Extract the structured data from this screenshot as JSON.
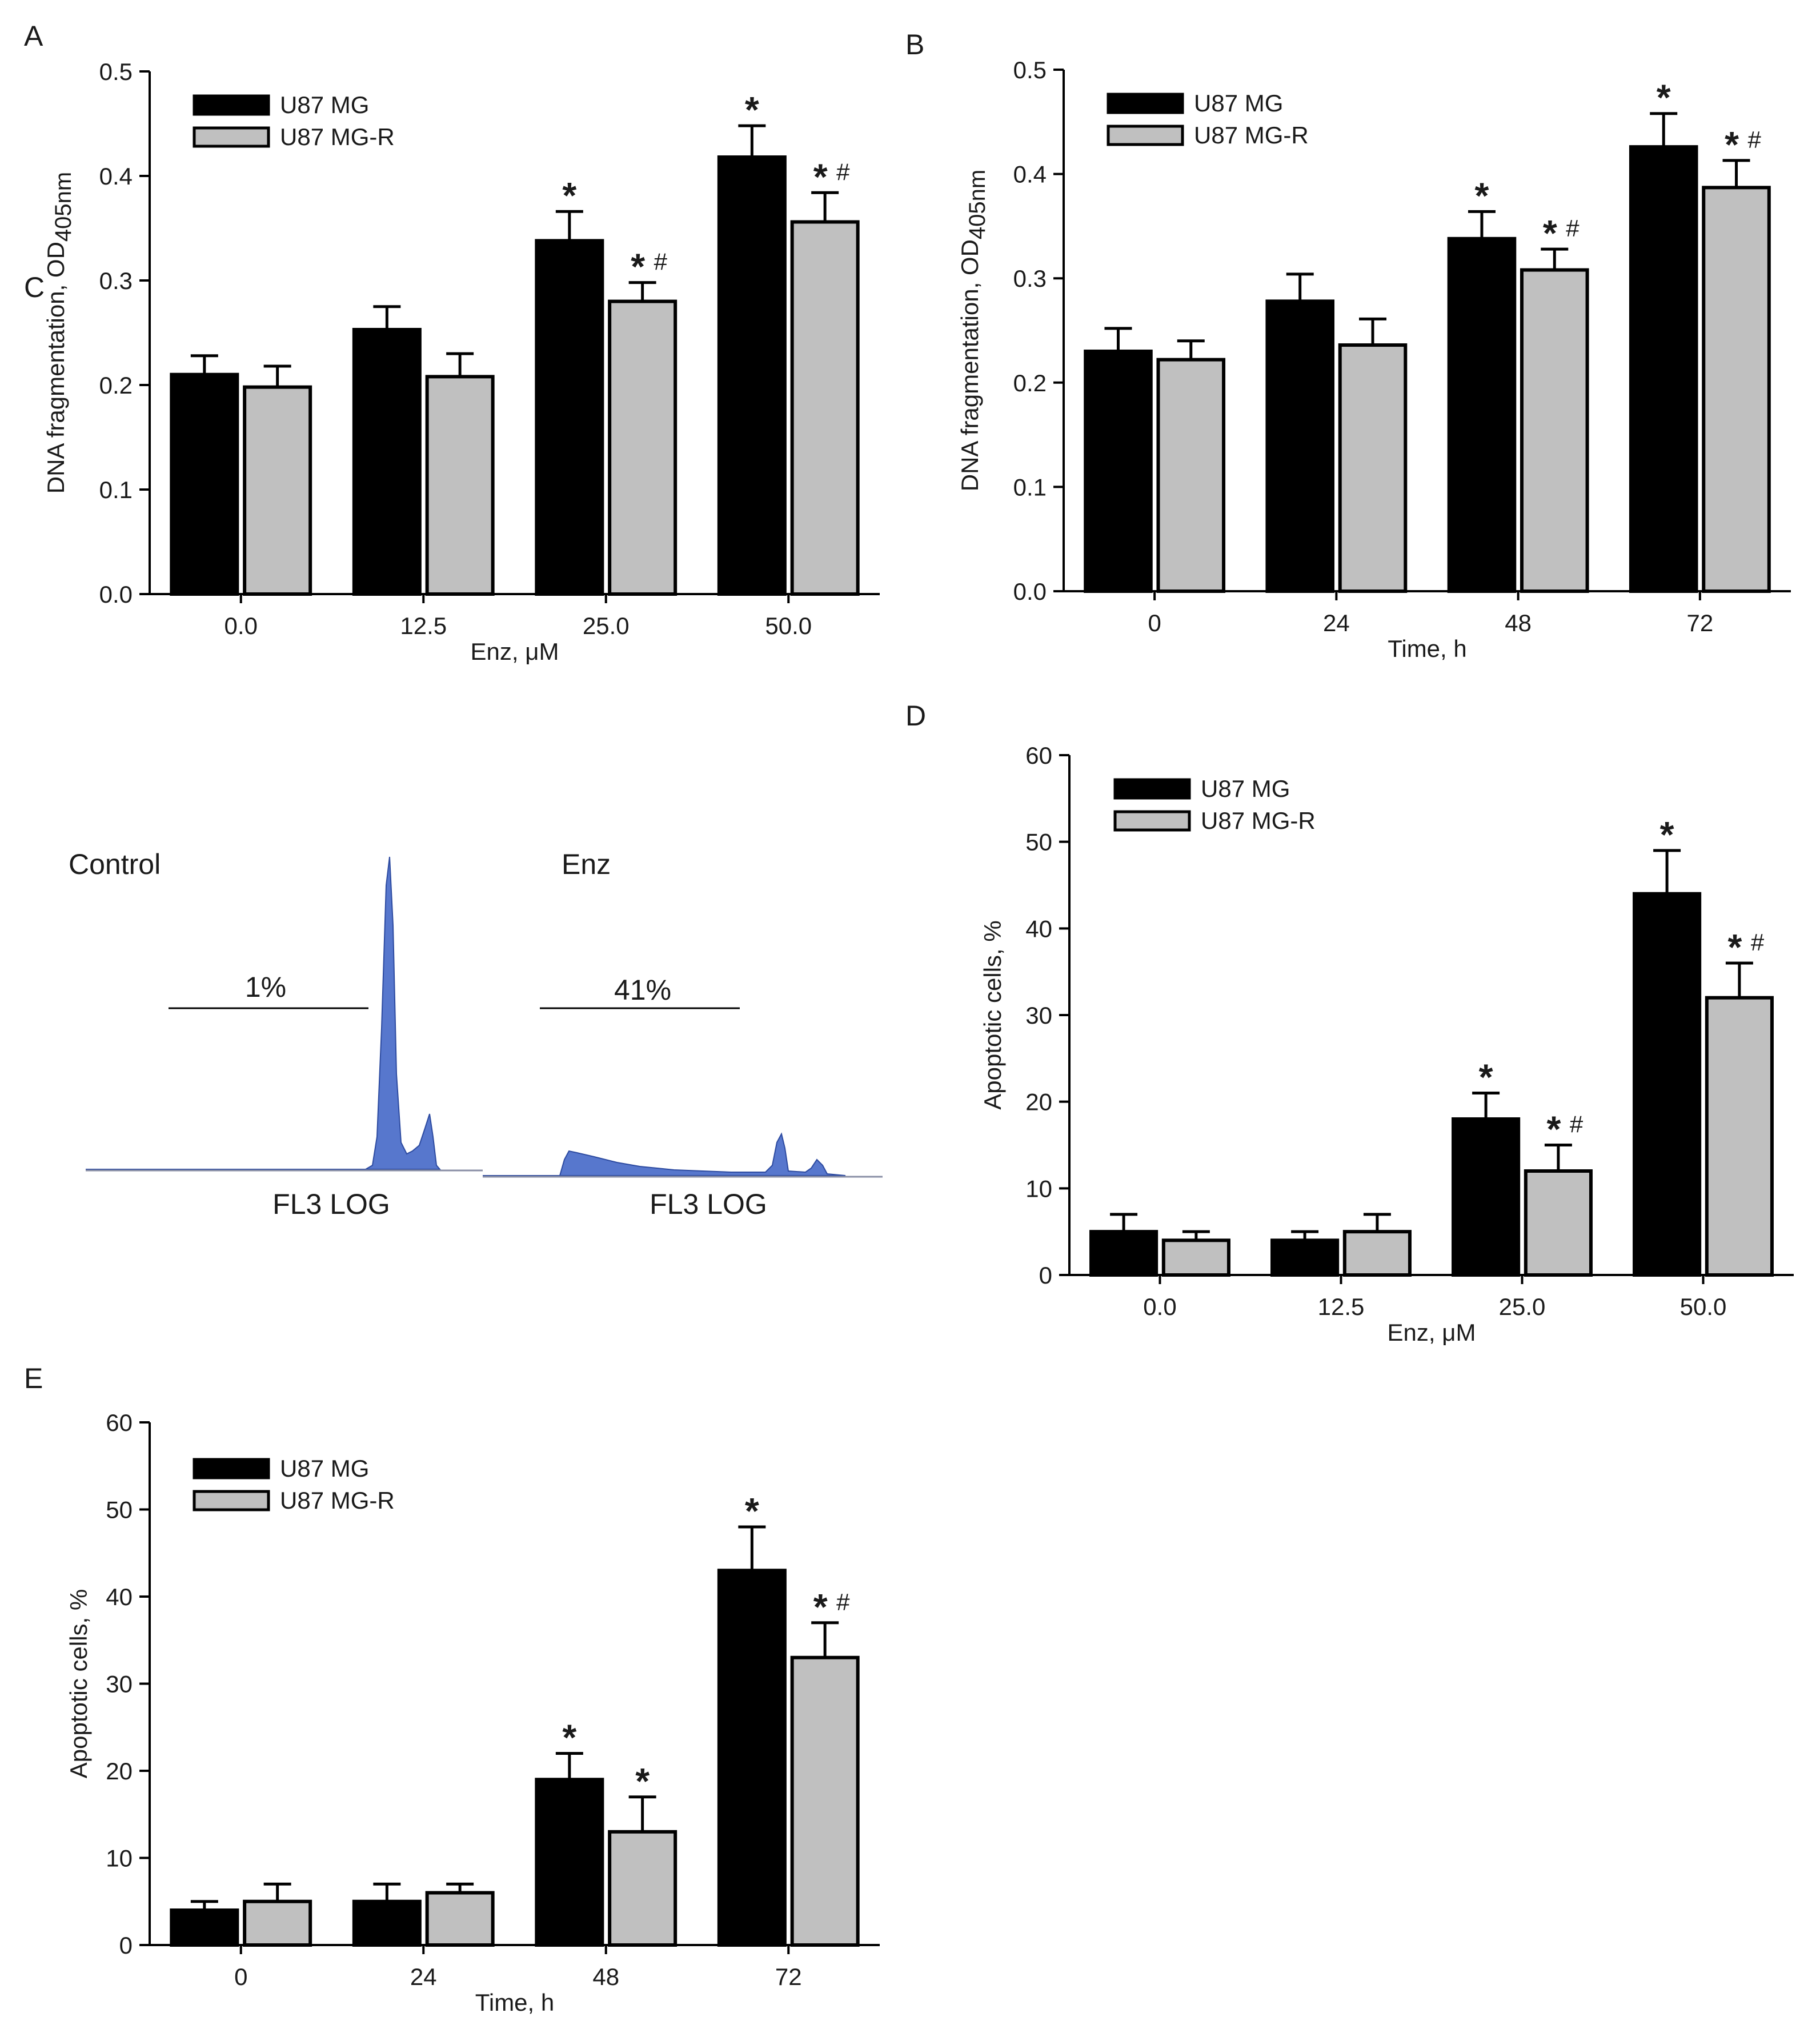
{
  "chart_data": [
    {
      "panel": "A",
      "type": "bar",
      "categories": [
        "0.0",
        "12.5",
        "25.0",
        "50.0"
      ],
      "series": [
        {
          "name": "U87 MG",
          "values": [
            0.21,
            0.253,
            0.338,
            0.418
          ],
          "errors": [
            0.018,
            0.022,
            0.028,
            0.03
          ],
          "markers": [
            "",
            "",
            "*",
            "*"
          ]
        },
        {
          "name": "U87 MG-R",
          "values": [
            0.198,
            0.208,
            0.28,
            0.356
          ],
          "errors": [
            0.02,
            0.022,
            0.018,
            0.028
          ],
          "markers": [
            "",
            "",
            "*#",
            "*#"
          ]
        }
      ],
      "xlabel": "Enz, μM",
      "ylabel": {
        "prefix": "DNA fragmentation, OD",
        "subscript": "405nm"
      },
      "ylim": [
        0.0,
        0.5
      ],
      "yticks": [
        "0.0",
        "0.1",
        "0.2",
        "0.3",
        "0.4",
        "0.5"
      ],
      "legend": "top-left"
    },
    {
      "panel": "B",
      "type": "bar",
      "categories": [
        "0",
        "24",
        "48",
        "72"
      ],
      "series": [
        {
          "name": "U87 MG",
          "values": [
            0.23,
            0.278,
            0.338,
            0.426
          ],
          "errors": [
            0.022,
            0.026,
            0.026,
            0.032
          ],
          "markers": [
            "",
            "",
            "*",
            "*"
          ]
        },
        {
          "name": "U87 MG-R",
          "values": [
            0.222,
            0.236,
            0.308,
            0.387
          ],
          "errors": [
            0.018,
            0.025,
            0.02,
            0.026
          ],
          "markers": [
            "",
            "",
            "*#",
            "*#"
          ]
        }
      ],
      "xlabel": "Time, h",
      "ylabel": {
        "prefix": "DNA fragmentation, OD",
        "subscript": "405nm"
      },
      "ylim": [
        0.0,
        0.5
      ],
      "yticks": [
        "0.0",
        "0.1",
        "0.2",
        "0.3",
        "0.4",
        "0.5"
      ],
      "legend": "top-left"
    },
    {
      "panel": "D",
      "type": "bar",
      "categories": [
        "0.0",
        "12.5",
        "25.0",
        "50.0"
      ],
      "series": [
        {
          "name": "U87 MG",
          "values": [
            5,
            4,
            18,
            44
          ],
          "errors": [
            2,
            1,
            3,
            5
          ],
          "markers": [
            "",
            "",
            "*",
            "*"
          ]
        },
        {
          "name": "U87 MG-R",
          "values": [
            4,
            5,
            12,
            32
          ],
          "errors": [
            1,
            2,
            3,
            4
          ],
          "markers": [
            "",
            "",
            "*#",
            "*#"
          ]
        }
      ],
      "xlabel": "Enz, μM",
      "ylabel": {
        "prefix": "Apoptotic cells, %",
        "subscript": ""
      },
      "ylim": [
        0,
        60
      ],
      "yticks": [
        "0",
        "10",
        "20",
        "30",
        "40",
        "50",
        "60"
      ],
      "legend": "top-left"
    },
    {
      "panel": "E",
      "type": "bar",
      "categories": [
        "0",
        "24",
        "48",
        "72"
      ],
      "series": [
        {
          "name": "U87 MG",
          "values": [
            4,
            5,
            19,
            43
          ],
          "errors": [
            1,
            2,
            3,
            5
          ],
          "markers": [
            "",
            "",
            "*",
            "*"
          ]
        },
        {
          "name": "U87 MG-R",
          "values": [
            5,
            6,
            13,
            33
          ],
          "errors": [
            2,
            1,
            4,
            4
          ],
          "markers": [
            "",
            "",
            "*",
            "*#"
          ]
        }
      ],
      "xlabel": "Time, h",
      "ylabel": {
        "prefix": "Apoptotic cells, %",
        "subscript": ""
      },
      "ylim": [
        0,
        60
      ],
      "yticks": [
        "0",
        "10",
        "20",
        "30",
        "40",
        "50",
        "60"
      ],
      "legend": "top-left"
    }
  ],
  "flow_panel": {
    "panel": "C",
    "left": {
      "title": "Control",
      "gate_percent": "1%",
      "xlabel": "FL3 LOG"
    },
    "right": {
      "title": "Enz",
      "gate_percent": "41%",
      "xlabel": "FL3 LOG"
    }
  },
  "colors": {
    "series_1": "#000000",
    "series_2": "#c0c0c0",
    "histogram": "#3a5fc4",
    "axis": "#000000"
  }
}
